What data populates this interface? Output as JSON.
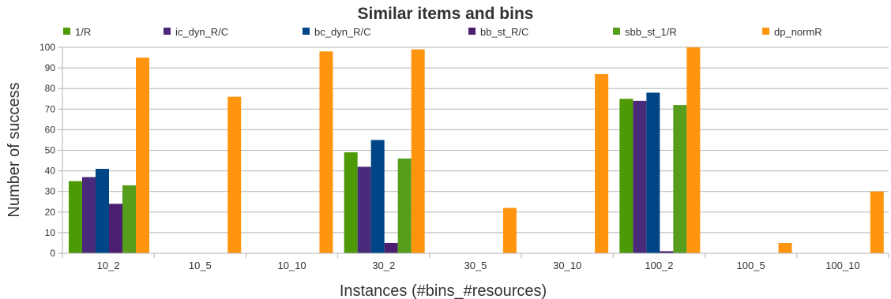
{
  "chart_data": {
    "type": "bar",
    "title": "Similar items and bins",
    "xlabel": "Instances (#bins_#resources)",
    "ylabel": "Number of success",
    "ylim": [
      0,
      100
    ],
    "yticks": [
      0,
      10,
      20,
      30,
      40,
      50,
      60,
      70,
      80,
      90,
      100
    ],
    "grid": true,
    "legend_position": "top",
    "categories": [
      "10_2",
      "10_5",
      "10_10",
      "30_2",
      "30_5",
      "30_10",
      "100_2",
      "100_5",
      "100_10"
    ],
    "series": [
      {
        "name": "1/R",
        "color": "#4e9a06",
        "values": [
          35,
          0,
          0,
          49,
          0,
          0,
          75,
          0,
          0
        ]
      },
      {
        "name": "ic_dyn_R/C",
        "color": "#4a2a7a",
        "values": [
          37,
          0,
          0,
          42,
          0,
          0,
          74,
          0,
          0
        ]
      },
      {
        "name": "bc_dyn_R/C",
        "color": "#004586",
        "values": [
          41,
          0,
          0,
          55,
          0,
          0,
          78,
          0,
          0
        ]
      },
      {
        "name": "bb_st_R/C",
        "color": "#4b1f6f",
        "values": [
          24,
          0,
          0,
          5,
          0,
          0,
          1,
          0,
          0
        ]
      },
      {
        "name": "sbb_st_1/R",
        "color": "#579d1c",
        "values": [
          33,
          0,
          0,
          46,
          0,
          0,
          72,
          0,
          0
        ]
      },
      {
        "name": "dp_normR",
        "color": "#ff950e",
        "values": [
          95,
          76,
          98,
          99,
          22,
          87,
          100,
          5,
          30
        ]
      }
    ]
  }
}
